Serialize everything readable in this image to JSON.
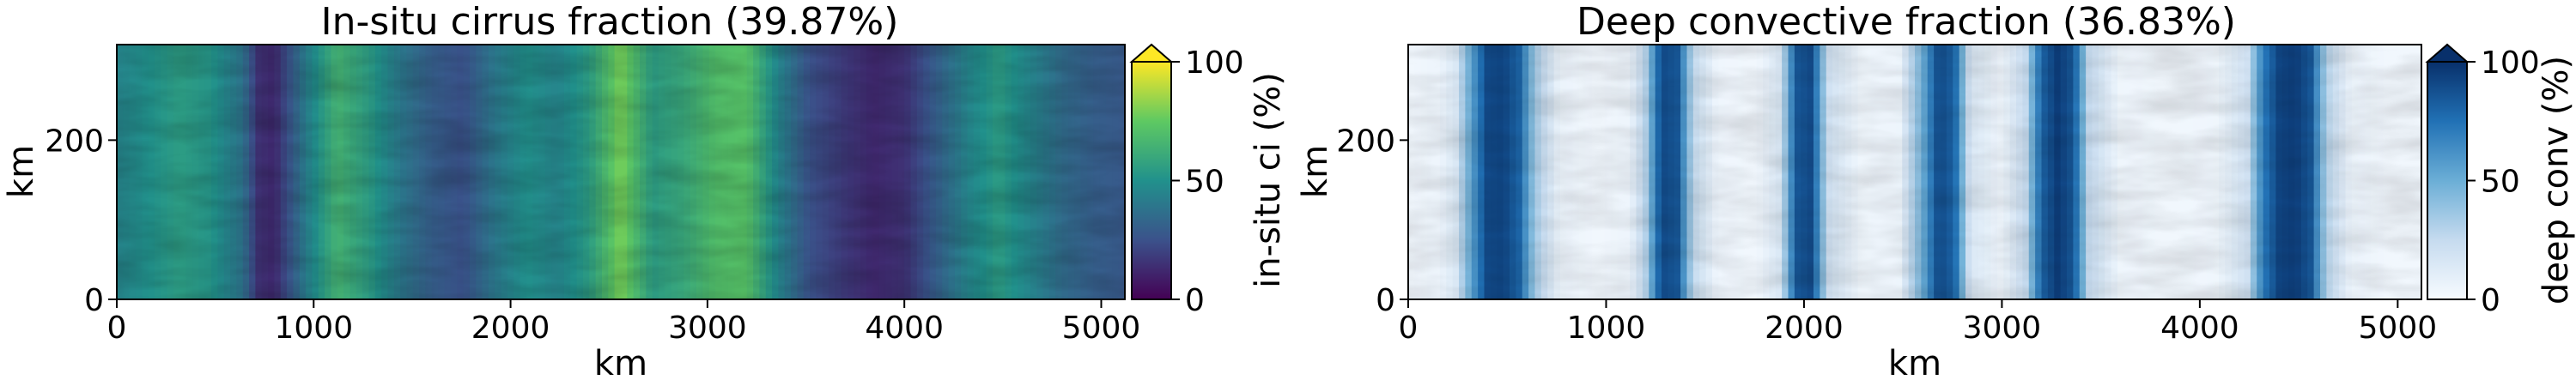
{
  "chart_data": [
    {
      "type": "heatmap",
      "title": "In-situ cirrus fraction (39.87%)",
      "xlabel": "km",
      "ylabel": "km",
      "xlim": [
        0,
        5120
      ],
      "ylim": [
        0,
        320
      ],
      "xticks": [
        0,
        1000,
        2000,
        3000,
        4000,
        5000
      ],
      "yticks": [
        0,
        200
      ],
      "colormap": "viridis",
      "colorbar": {
        "label": "in-situ ci (%)",
        "range": [
          0,
          100
        ],
        "ticks": [
          0,
          50,
          100
        ],
        "extend": "max"
      },
      "column_profile": {
        "x_km": [
          0,
          160,
          320,
          480,
          640,
          720,
          800,
          960,
          1120,
          1280,
          1440,
          1600,
          1760,
          1920,
          2080,
          2240,
          2400,
          2560,
          2720,
          2880,
          3040,
          3200,
          3360,
          3520,
          3680,
          3840,
          4000,
          4160,
          4320,
          4480,
          4640,
          4800,
          4960,
          5120
        ],
        "value_pct": [
          45,
          50,
          55,
          52,
          38,
          15,
          12,
          42,
          65,
          55,
          40,
          30,
          25,
          40,
          50,
          45,
          55,
          80,
          55,
          60,
          70,
          72,
          45,
          25,
          18,
          12,
          15,
          30,
          45,
          55,
          45,
          35,
          30,
          28
        ]
      }
    },
    {
      "type": "heatmap",
      "title": "Deep convective fraction (36.83%)",
      "xlabel": "km",
      "ylabel": "km",
      "xlim": [
        0,
        5120
      ],
      "ylim": [
        0,
        320
      ],
      "xticks": [
        0,
        1000,
        2000,
        3000,
        4000,
        5000
      ],
      "yticks": [
        0,
        200
      ],
      "colormap": "Blues",
      "colorbar": {
        "label": "deep conv (%)",
        "range": [
          0,
          100
        ],
        "ticks": [
          0,
          50,
          100
        ],
        "extend": "max"
      },
      "column_profile": {
        "x_km": [
          0,
          160,
          240,
          320,
          400,
          480,
          560,
          640,
          760,
          960,
          1120,
          1200,
          1280,
          1360,
          1440,
          1560,
          1760,
          1880,
          1960,
          2040,
          2120,
          2280,
          2480,
          2600,
          2680,
          2760,
          2840,
          3000,
          3120,
          3200,
          3280,
          3360,
          3440,
          3600,
          3840,
          4080,
          4240,
          4320,
          4400,
          4480,
          4560,
          4640,
          4760,
          4960,
          5120
        ],
        "value_pct": [
          3,
          5,
          15,
          55,
          90,
          92,
          80,
          35,
          6,
          3,
          5,
          30,
          90,
          85,
          25,
          4,
          3,
          15,
          85,
          90,
          20,
          4,
          5,
          50,
          90,
          80,
          15,
          4,
          25,
          80,
          95,
          85,
          25,
          4,
          3,
          4,
          20,
          70,
          92,
          95,
          85,
          30,
          6,
          3,
          3
        ]
      }
    }
  ]
}
